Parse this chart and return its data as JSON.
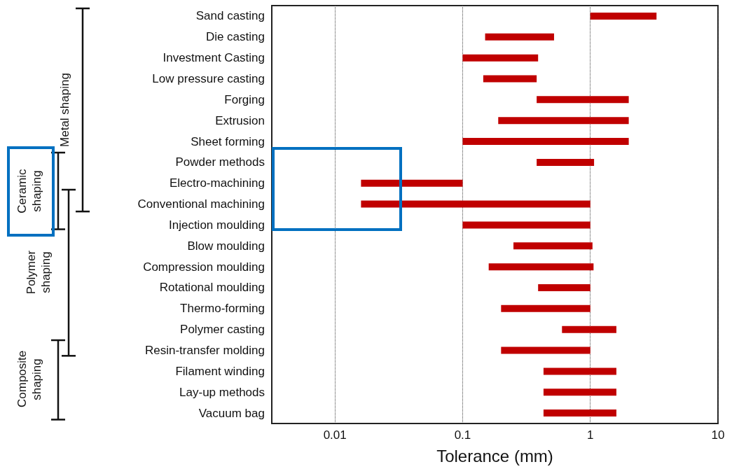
{
  "chart_data": {
    "type": "bar",
    "orientation": "horizontal",
    "xlabel": "Tolerance (mm)",
    "categories": [
      "Sand casting",
      "Die casting",
      "Investment Casting",
      "Low pressure casting",
      "Forging",
      "Extrusion",
      "Sheet forming",
      "Powder methods",
      "Electro-machining",
      "Conventional machining",
      "Injection moulding",
      "Blow moulding",
      "Compression moulding",
      "Rotational moulding",
      "Thermo-forming",
      "Polymer casting",
      "Resin-transfer molding",
      "Filament winding",
      "Lay-up methods",
      "Vacuum bag"
    ],
    "base": [
      1,
      0.15,
      0.1,
      0.145,
      0.38,
      0.19,
      0.1,
      0.38,
      0.016,
      0.016,
      0.1,
      0.25,
      0.16,
      0.39,
      0.2,
      0.6,
      0.2,
      0.43,
      0.43,
      0.43
    ],
    "values": [
      2.3,
      0.37,
      0.29,
      0.235,
      1.62,
      1.81,
      1.9,
      0.69,
      0.084,
      0.984,
      0.9,
      0.79,
      0.9,
      0.61,
      0.8,
      1.0,
      0.8,
      1.17,
      1.17,
      1.17
    ],
    "color": "#c00000",
    "log": "x",
    "xlim": [
      0.0032,
      10
    ],
    "xticks": [
      0.01,
      0.1,
      1,
      10
    ],
    "grid": "x",
    "annotations": [
      "Metal shaping",
      "Ceramic shaping",
      "Polymer shaping",
      "Composite shaping"
    ]
  }
}
